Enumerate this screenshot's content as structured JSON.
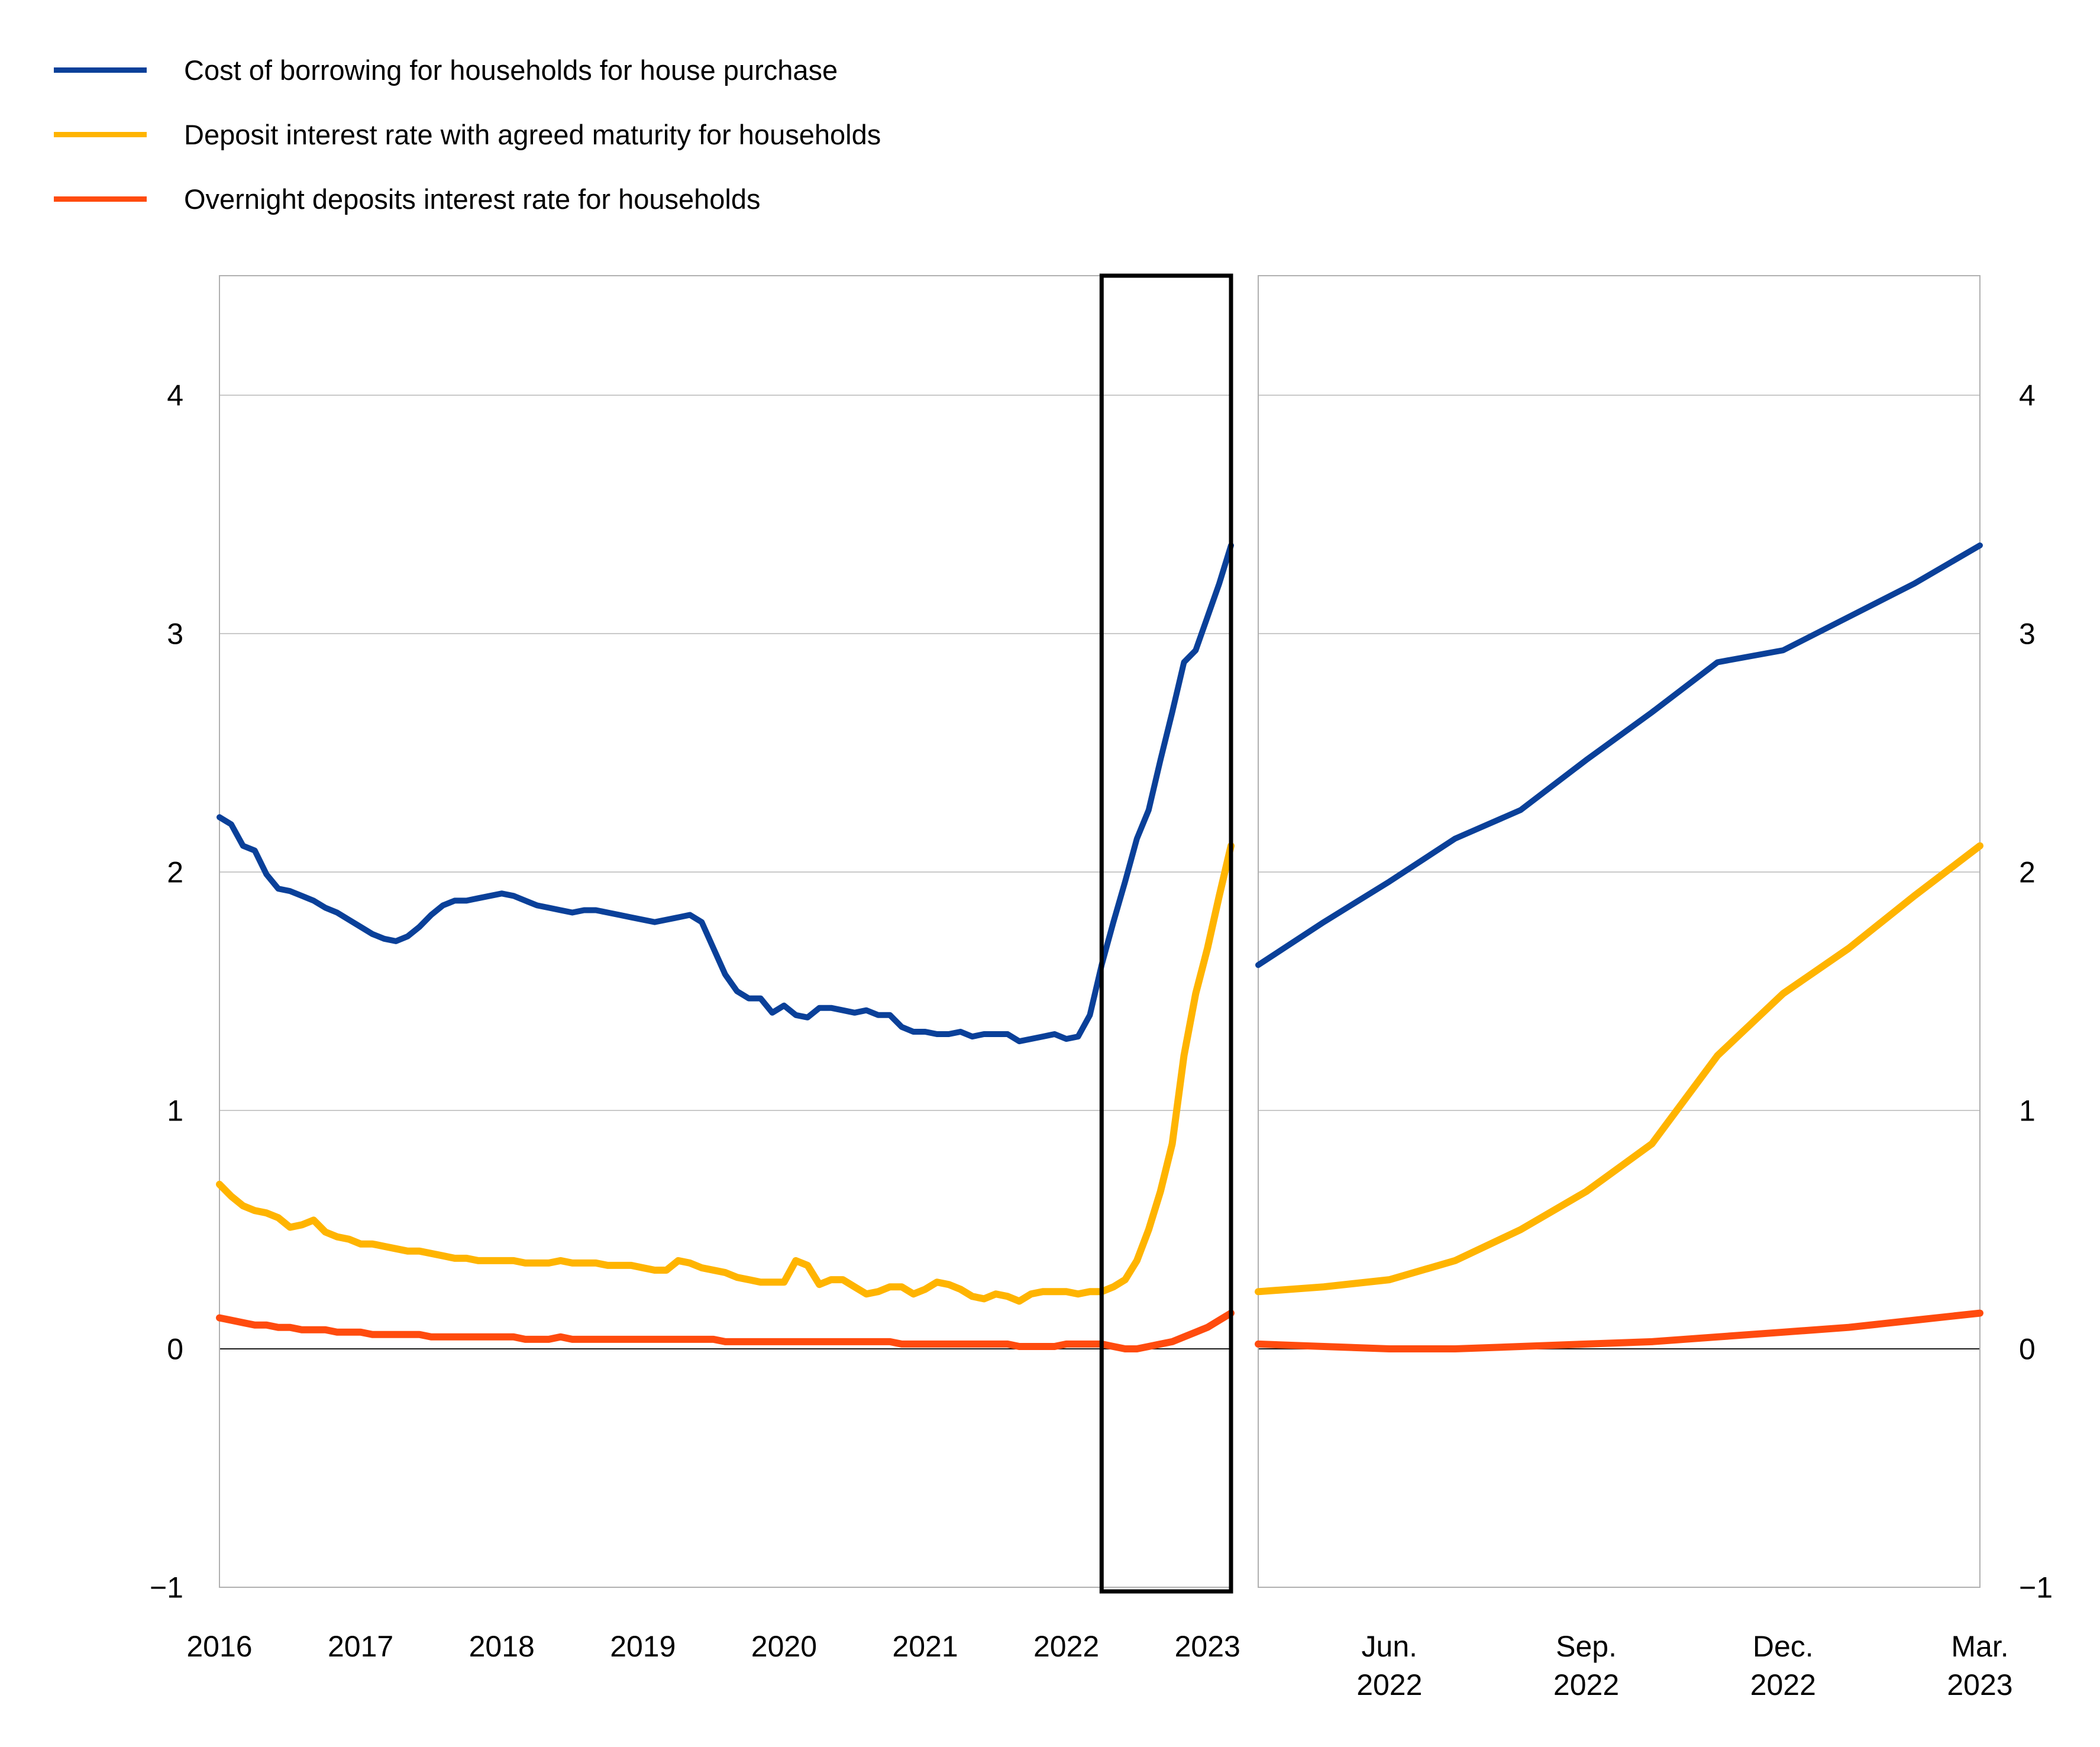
{
  "page": {
    "background": "#ffffff"
  },
  "legend": {
    "items": [
      {
        "label": "Cost of borrowing for households for house purchase",
        "color": "#0A4099"
      },
      {
        "label": "Deposit interest rate with agreed maturity for households",
        "color": "#FFB400"
      },
      {
        "label": "Overnight deposits interest rate for households",
        "color": "#FF4B0E"
      }
    ]
  },
  "chart_data": {
    "type": "line",
    "grid": true,
    "zero_line": true,
    "ylim": [
      -1,
      4.5
    ],
    "yticks": [
      -1,
      0,
      1,
      2,
      3,
      4
    ],
    "ytick_labels": [
      "−1",
      "0",
      "1",
      "2",
      "3",
      "4"
    ],
    "panels": [
      {
        "id": "history",
        "x_start": "2016-01",
        "x_end": "2023-03",
        "x_tick_labels": [
          "2016",
          "2017",
          "2018",
          "2019",
          "2020",
          "2021",
          "2022",
          "2023"
        ],
        "x_tick_months": [
          0,
          12,
          24,
          36,
          48,
          60,
          72,
          84
        ],
        "y_labels_side": "left",
        "highlight_box_months": [
          75,
          86
        ],
        "series": [
          {
            "name": "Cost of borrowing for households for house purchase",
            "color": "#0A4099",
            "values": [
              2.23,
              2.2,
              2.11,
              2.09,
              1.99,
              1.93,
              1.92,
              1.9,
              1.88,
              1.85,
              1.83,
              1.8,
              1.77,
              1.74,
              1.72,
              1.71,
              1.73,
              1.77,
              1.82,
              1.86,
              1.88,
              1.88,
              1.89,
              1.9,
              1.91,
              1.9,
              1.88,
              1.86,
              1.85,
              1.84,
              1.83,
              1.84,
              1.84,
              1.83,
              1.82,
              1.81,
              1.8,
              1.79,
              1.8,
              1.81,
              1.82,
              1.79,
              1.68,
              1.57,
              1.5,
              1.47,
              1.47,
              1.41,
              1.44,
              1.4,
              1.39,
              1.43,
              1.43,
              1.42,
              1.41,
              1.42,
              1.4,
              1.4,
              1.35,
              1.33,
              1.33,
              1.32,
              1.32,
              1.33,
              1.31,
              1.32,
              1.32,
              1.32,
              1.29,
              1.3,
              1.31,
              1.32,
              1.3,
              1.31,
              1.4,
              1.61,
              1.79,
              1.96,
              2.14,
              2.26,
              2.47,
              2.67,
              2.88,
              2.93,
              3.07,
              3.21,
              3.37
            ]
          },
          {
            "name": "Deposit interest rate with agreed maturity for households",
            "color": "#FFB400",
            "values": [
              0.69,
              0.64,
              0.6,
              0.58,
              0.57,
              0.55,
              0.51,
              0.52,
              0.54,
              0.49,
              0.47,
              0.46,
              0.44,
              0.44,
              0.43,
              0.42,
              0.41,
              0.41,
              0.4,
              0.39,
              0.38,
              0.38,
              0.37,
              0.37,
              0.37,
              0.37,
              0.36,
              0.36,
              0.36,
              0.37,
              0.36,
              0.36,
              0.36,
              0.35,
              0.35,
              0.35,
              0.34,
              0.33,
              0.33,
              0.37,
              0.36,
              0.34,
              0.33,
              0.32,
              0.3,
              0.29,
              0.28,
              0.28,
              0.28,
              0.37,
              0.35,
              0.27,
              0.29,
              0.29,
              0.26,
              0.23,
              0.24,
              0.26,
              0.26,
              0.23,
              0.25,
              0.28,
              0.27,
              0.25,
              0.22,
              0.21,
              0.23,
              0.22,
              0.2,
              0.23,
              0.24,
              0.24,
              0.24,
              0.23,
              0.24,
              0.24,
              0.26,
              0.29,
              0.37,
              0.5,
              0.66,
              0.86,
              1.23,
              1.49,
              1.68,
              1.9,
              2.11
            ]
          },
          {
            "name": "Overnight deposits interest rate for households",
            "color": "#FF4B0E",
            "values": [
              0.13,
              0.12,
              0.11,
              0.1,
              0.1,
              0.09,
              0.09,
              0.08,
              0.08,
              0.08,
              0.07,
              0.07,
              0.07,
              0.06,
              0.06,
              0.06,
              0.06,
              0.06,
              0.05,
              0.05,
              0.05,
              0.05,
              0.05,
              0.05,
              0.05,
              0.05,
              0.04,
              0.04,
              0.04,
              0.05,
              0.04,
              0.04,
              0.04,
              0.04,
              0.04,
              0.04,
              0.04,
              0.04,
              0.04,
              0.04,
              0.04,
              0.04,
              0.04,
              0.03,
              0.03,
              0.03,
              0.03,
              0.03,
              0.03,
              0.03,
              0.03,
              0.03,
              0.03,
              0.03,
              0.03,
              0.03,
              0.03,
              0.03,
              0.02,
              0.02,
              0.02,
              0.02,
              0.02,
              0.02,
              0.02,
              0.02,
              0.02,
              0.02,
              0.01,
              0.01,
              0.01,
              0.01,
              0.02,
              0.02,
              0.02,
              0.02,
              0.01,
              0.0,
              0.0,
              0.01,
              0.02,
              0.03,
              0.05,
              0.07,
              0.09,
              0.12,
              0.15
            ]
          }
        ]
      },
      {
        "id": "recent",
        "x_start": "2022-04",
        "x_end": "2023-03",
        "x_ticks": [
          {
            "line1": "Jun.",
            "line2": "2022",
            "month": 2
          },
          {
            "line1": "Sep.",
            "line2": "2022",
            "month": 5
          },
          {
            "line1": "Dec.",
            "line2": "2022",
            "month": 8
          },
          {
            "line1": "Mar.",
            "line2": "2023",
            "month": 11
          }
        ],
        "y_labels_side": "right",
        "series": [
          {
            "name": "Cost of borrowing for households for house purchase",
            "color": "#0A4099",
            "values": [
              1.61,
              1.79,
              1.96,
              2.14,
              2.26,
              2.47,
              2.67,
              2.88,
              2.93,
              3.07,
              3.21,
              3.37
            ]
          },
          {
            "name": "Deposit interest rate with agreed maturity for households",
            "color": "#FFB400",
            "values": [
              0.24,
              0.26,
              0.29,
              0.37,
              0.5,
              0.66,
              0.86,
              1.23,
              1.49,
              1.68,
              1.9,
              2.11
            ]
          },
          {
            "name": "Overnight deposits interest rate for households",
            "color": "#FF4B0E",
            "values": [
              0.02,
              0.01,
              0.0,
              0.0,
              0.01,
              0.02,
              0.03,
              0.05,
              0.07,
              0.09,
              0.12,
              0.15
            ]
          }
        ]
      }
    ]
  }
}
